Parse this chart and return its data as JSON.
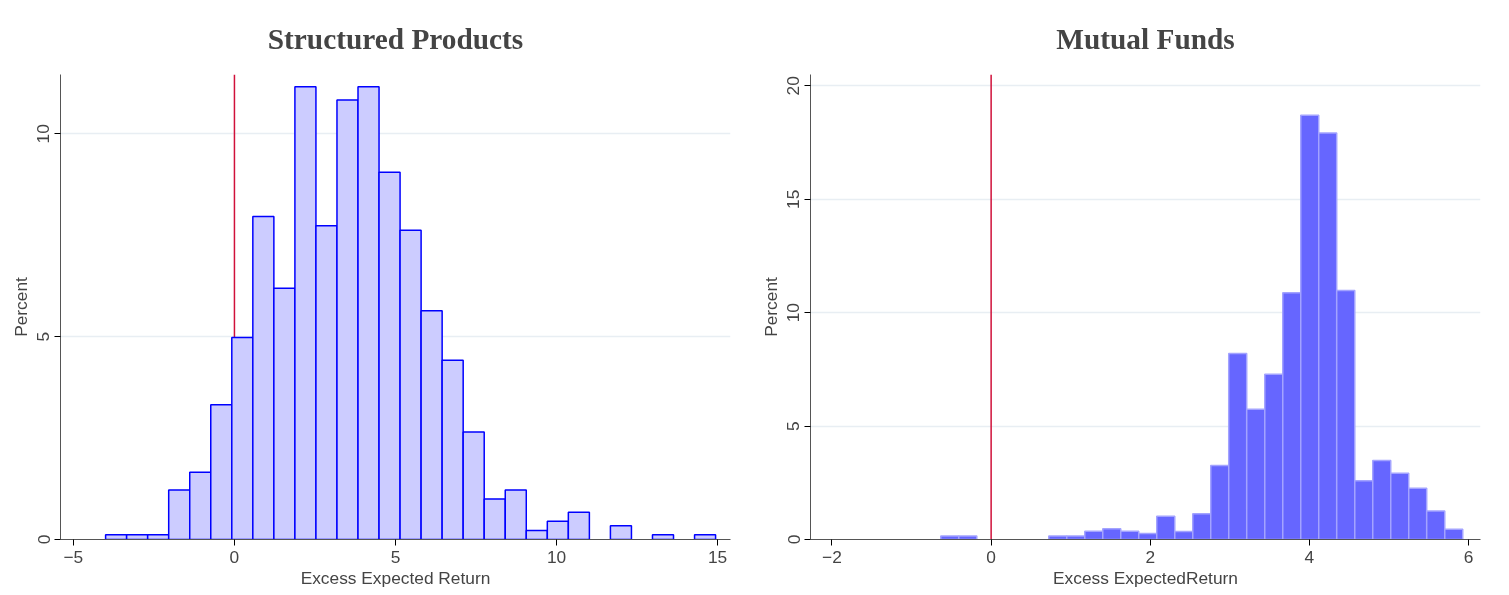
{
  "chart_data": [
    {
      "type": "histogram",
      "title": "Structured Products",
      "xlabel": "Excess Expected Return",
      "ylabel": "Percent",
      "color": "#ccccff",
      "bins": [
        -4,
        -3.347,
        -2.694,
        -2.041,
        -1.388,
        -0.735,
        -0.082,
        0.571,
        1.224,
        1.877,
        2.53,
        3.183,
        3.836,
        4.489,
        5.142,
        5.795,
        6.448,
        7.101,
        7.754,
        8.407,
        9.06,
        9.713,
        10.366,
        11.019,
        11.672,
        12.325,
        12.978,
        13.631,
        14.284,
        14.937
      ],
      "values": [
        0.12,
        0.12,
        0.12,
        1.22,
        1.66,
        3.32,
        4.98,
        7.96,
        6.19,
        11.16,
        7.73,
        10.83,
        11.16,
        9.05,
        7.62,
        5.64,
        4.42,
        2.65,
        1.0,
        1.22,
        0.22,
        0.45,
        0.67,
        0,
        0.34,
        0,
        0.12,
        0,
        0.12
      ],
      "xlim": [
        -5.4,
        15.4
      ],
      "xticks": [
        -5,
        0,
        5,
        10,
        15
      ],
      "ylim": [
        0,
        11.46
      ],
      "yticks": [
        0,
        5,
        10
      ],
      "grid": "y",
      "ref_lines": [
        {
          "axis": "x",
          "value": 0,
          "color": "#d0103a"
        }
      ]
    },
    {
      "type": "histogram",
      "title": "Mutual Funds",
      "xlabel": "Excess ExpectedReturn",
      "ylabel": "Percent",
      "color": "#6666ff",
      "bins": [
        -0.633,
        -0.407,
        -0.18,
        0.046,
        0.272,
        0.498,
        0.724,
        0.95,
        1.177,
        1.403,
        1.629,
        1.855,
        2.081,
        2.308,
        2.534,
        2.76,
        2.986,
        3.212,
        3.439,
        3.665,
        3.891,
        4.117,
        4.343,
        4.57,
        4.796,
        5.022,
        5.248,
        5.474,
        5.701,
        5.927
      ],
      "values": [
        0.15,
        0.15,
        0,
        0,
        0,
        0,
        0.15,
        0.15,
        0.36,
        0.47,
        0.36,
        0.26,
        1.03,
        0.35,
        1.14,
        3.26,
        8.2,
        5.74,
        7.29,
        10.88,
        18.7,
        17.92,
        10.98,
        2.59,
        3.48,
        2.92,
        2.26,
        1.26,
        0.45
      ],
      "xlim": [
        -2.27,
        6.15
      ],
      "xticks": [
        -2,
        0,
        2,
        4,
        6
      ],
      "ylim": [
        0,
        20.5
      ],
      "yticks": [
        0,
        5,
        10,
        15,
        20
      ],
      "grid": "y",
      "ref_lines": [
        {
          "axis": "x",
          "value": 0,
          "color": "#d0103a"
        }
      ]
    }
  ]
}
